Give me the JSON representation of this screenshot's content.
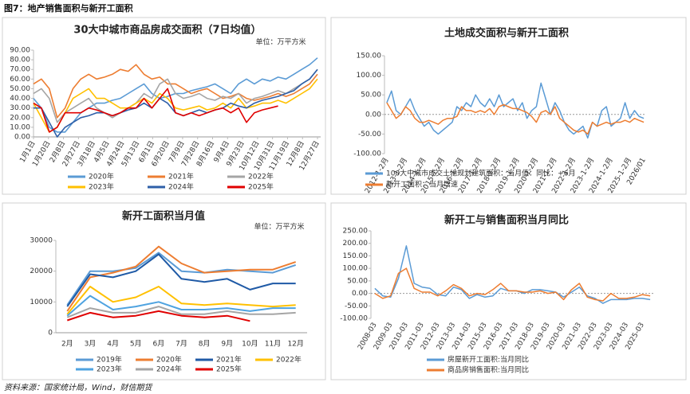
{
  "header": {
    "title": "图7：地产销售面积与新开工面积"
  },
  "footer": {
    "source": "资料来源：国家统计局，Wind，财信期货"
  },
  "chart_data": [
    {
      "type": "line",
      "title": "30大中城市商品房成交面积（7日均值）",
      "unit": "单位：万平方米",
      "x": [
        0,
        10,
        20,
        30,
        40,
        50,
        60,
        70,
        80,
        90,
        100,
        110,
        120,
        130,
        140,
        150,
        160,
        170,
        180,
        190,
        200,
        210,
        220,
        230,
        240,
        250,
        260,
        270,
        280,
        290,
        300,
        310,
        320,
        330,
        340,
        350,
        360
      ],
      "xlim": [
        0,
        364
      ],
      "xticks": [
        {
          "value": 0,
          "label": "1月1日"
        },
        {
          "value": 19,
          "label": "1月20日"
        },
        {
          "value": 38,
          "label": "2月8日"
        },
        {
          "value": 57,
          "label": "2月27日"
        },
        {
          "value": 76,
          "label": "3月18日"
        },
        {
          "value": 94,
          "label": "4月5日"
        },
        {
          "value": 113,
          "label": "4月24日"
        },
        {
          "value": 132,
          "label": "5月13日"
        },
        {
          "value": 151,
          "label": "6月1日"
        },
        {
          "value": 170,
          "label": "6月20日"
        },
        {
          "value": 189,
          "label": "7月9日"
        },
        {
          "value": 208,
          "label": "7月28日"
        },
        {
          "value": 227,
          "label": "8月16日"
        },
        {
          "value": 246,
          "label": "9月4日"
        },
        {
          "value": 265,
          "label": "9月23日"
        },
        {
          "value": 284,
          "label": "10月12日"
        },
        {
          "value": 303,
          "label": "10月31日"
        },
        {
          "value": 322,
          "label": "11月19日"
        },
        {
          "value": 341,
          "label": "12月8日"
        },
        {
          "value": 360,
          "label": "12月27日"
        }
      ],
      "ylim": [
        0,
        90
      ],
      "yticks": [
        {
          "value": 0,
          "label": "0.00"
        },
        {
          "value": 10,
          "label": "10.00"
        },
        {
          "value": 20,
          "label": "20.00"
        },
        {
          "value": 30,
          "label": "30.00"
        },
        {
          "value": 40,
          "label": "40.00"
        },
        {
          "value": 50,
          "label": "50.00"
        },
        {
          "value": 60,
          "label": "60.00"
        },
        {
          "value": 70,
          "label": "70.00"
        },
        {
          "value": 80,
          "label": "80.00"
        },
        {
          "value": 90,
          "label": "90.00"
        }
      ],
      "series": [
        {
          "name": "2020年",
          "color": "#5b9bd5",
          "values": [
            40,
            30,
            10,
            5,
            5,
            15,
            25,
            30,
            35,
            35,
            38,
            40,
            45,
            50,
            55,
            45,
            40,
            42,
            45,
            45,
            48,
            50,
            52,
            55,
            50,
            45,
            55,
            60,
            55,
            60,
            58,
            62,
            60,
            65,
            70,
            75,
            82
          ]
        },
        {
          "name": "2021年",
          "color": "#ed7d31",
          "values": [
            55,
            60,
            50,
            20,
            30,
            50,
            60,
            65,
            60,
            62,
            65,
            70,
            68,
            75,
            65,
            60,
            62,
            55,
            55,
            50,
            45,
            48,
            50,
            45,
            40,
            42,
            45,
            40,
            38,
            40,
            42,
            45,
            42,
            45,
            50,
            55,
            65
          ]
        },
        {
          "name": "2022年",
          "color": "#a5a5a5",
          "values": [
            45,
            50,
            40,
            15,
            25,
            30,
            35,
            40,
            30,
            25,
            20,
            25,
            30,
            35,
            45,
            40,
            55,
            60,
            45,
            40,
            42,
            45,
            40,
            38,
            42,
            40,
            45,
            35,
            40,
            42,
            45,
            48,
            45,
            50,
            55,
            60,
            70
          ]
        },
        {
          "name": "2023年",
          "color": "#ffc000",
          "values": [
            35,
            20,
            5,
            10,
            25,
            40,
            45,
            50,
            40,
            40,
            35,
            30,
            30,
            35,
            40,
            35,
            45,
            40,
            30,
            28,
            30,
            32,
            28,
            30,
            35,
            30,
            40,
            30,
            32,
            35,
            35,
            38,
            35,
            40,
            45,
            50,
            60
          ]
        },
        {
          "name": "2024年",
          "color": "#2e5fa8",
          "values": [
            30,
            30,
            15,
            0,
            10,
            15,
            20,
            22,
            25,
            25,
            22,
            25,
            28,
            30,
            35,
            30,
            40,
            35,
            25,
            22,
            25,
            28,
            25,
            28,
            30,
            35,
            32,
            30,
            35,
            38,
            40,
            42,
            45,
            48,
            55,
            60,
            70
          ]
        },
        {
          "name": "2025年",
          "color": "#e00000",
          "values": [
            35,
            30,
            5,
            10,
            25,
            25,
            25,
            30,
            28,
            25,
            22,
            25,
            30,
            30,
            40,
            30,
            40,
            50,
            25,
            22,
            25,
            22,
            25,
            28,
            30,
            25,
            30,
            15,
            25,
            28,
            30,
            32,
            null,
            null,
            null,
            null,
            null
          ]
        }
      ]
    },
    {
      "type": "line",
      "title": "土地成交面积与新开工面积",
      "categories": [
        "2012-1-2月",
        null,
        null,
        null,
        "2013-1-2月",
        null,
        null,
        null,
        "2014-1-2月",
        null,
        null,
        null,
        "2015-1-2月",
        null,
        null,
        null,
        "2016-1-2月",
        null,
        null,
        null,
        "2017-1-2月",
        null,
        null,
        null,
        "2018-1-2月",
        null,
        null,
        null,
        "2019-1-2月",
        null,
        null,
        null,
        "2020-1-2月",
        null,
        null,
        null,
        "2021-1-2月",
        null,
        null,
        null,
        "2022-1-2月",
        null,
        null,
        null,
        "2023-1-2月",
        null,
        null,
        null,
        "2024-1-2月",
        null,
        null,
        null,
        "2025-1-2月",
        null,
        null,
        "2026/01"
      ],
      "ylim": [
        -100,
        150
      ],
      "yticks": [
        {
          "value": -100,
          "label": "-100.00"
        },
        {
          "value": -50,
          "label": "-50.00"
        },
        {
          "value": 0,
          "label": "0.00"
        },
        {
          "value": 50,
          "label": "50.00"
        },
        {
          "value": 100,
          "label": "100.00"
        },
        {
          "value": 150,
          "label": "150.00"
        }
      ],
      "series": [
        {
          "name": "100大中城市成交土地规划建筑面积：当月值：同比：+6月",
          "color": "#5b9bd5",
          "values": [
            30,
            60,
            10,
            0,
            20,
            40,
            10,
            -10,
            -30,
            -20,
            -40,
            -50,
            -40,
            -30,
            -20,
            20,
            10,
            30,
            20,
            50,
            30,
            20,
            40,
            20,
            50,
            20,
            30,
            40,
            10,
            30,
            -10,
            10,
            20,
            80,
            40,
            0,
            30,
            10,
            -20,
            -40,
            -50,
            -40,
            -30,
            -60,
            -20,
            -30,
            10,
            20,
            -30,
            -20,
            -10,
            30,
            -10,
            10,
            -5,
            -10
          ]
        },
        {
          "name": "新开工面积：当月增速",
          "color": "#ed7d31",
          "values": [
            30,
            10,
            -10,
            0,
            20,
            10,
            -10,
            -20,
            -20,
            -15,
            -20,
            -25,
            -15,
            -10,
            -10,
            -5,
            20,
            10,
            10,
            5,
            10,
            5,
            15,
            0,
            20,
            25,
            20,
            15,
            15,
            10,
            5,
            -5,
            -20,
            5,
            10,
            0,
            20,
            -10,
            -20,
            -30,
            -40,
            -45,
            -40,
            -50,
            -20,
            -30,
            -25,
            -20,
            -25,
            -20,
            -20,
            -15,
            -20,
            -10,
            -15,
            -20
          ]
        }
      ]
    },
    {
      "type": "line",
      "title": "新开工面积当月值",
      "unit": "单位：万平方米",
      "categories": [
        "2月",
        "3月",
        "4月",
        "5月",
        "6月",
        "7月",
        "8月",
        "9月",
        "10月",
        "11月",
        "12月"
      ],
      "ylim": [
        0,
        30000
      ],
      "yticks": [
        0,
        10000,
        20000,
        30000
      ],
      "series": [
        {
          "name": "2019年",
          "color": "#5b9bd5",
          "values": [
            9000,
            20000,
            20000,
            21000,
            26000,
            20000,
            19500,
            20500,
            20000,
            19500,
            22000
          ]
        },
        {
          "name": "2020年",
          "color": "#ed7d31",
          "values": [
            7000,
            18000,
            19500,
            21500,
            28000,
            22500,
            19500,
            20000,
            20500,
            20500,
            23000
          ]
        },
        {
          "name": "2021年",
          "color": "#1f5aa6",
          "values": [
            8500,
            19000,
            18000,
            20000,
            25500,
            17500,
            16500,
            17500,
            14000,
            16000,
            16000
          ]
        },
        {
          "name": "2022年",
          "color": "#ffc000",
          "values": [
            6000,
            15000,
            10000,
            11500,
            15000,
            9500,
            9000,
            9500,
            9000,
            8500,
            9000
          ]
        },
        {
          "name": "2023年",
          "color": "#4fa3e0",
          "values": [
            5500,
            12000,
            7500,
            8500,
            10000,
            7500,
            7500,
            8000,
            7000,
            8000,
            8000
          ]
        },
        {
          "name": "2024年",
          "color": "#a5a5a5",
          "values": [
            5000,
            8000,
            6500,
            6500,
            8500,
            6000,
            6000,
            7000,
            6000,
            6000,
            6500
          ]
        },
        {
          "name": "2025年",
          "color": "#e00000",
          "values": [
            4000,
            6500,
            5000,
            5500,
            7000,
            5500,
            5000,
            5500,
            3800,
            null,
            null
          ]
        }
      ]
    },
    {
      "type": "line",
      "title": "新开工与销售面积当月同比",
      "categories": [
        "2008-03",
        null,
        "2009-03",
        null,
        "2010-03",
        null,
        "2011-03",
        null,
        "2012-03",
        null,
        "2013-03",
        null,
        "2014-03",
        null,
        "2015-03",
        null,
        "2016-03",
        null,
        "2017-03",
        null,
        "2018-03",
        null,
        "2019-03",
        null,
        "2020-03",
        null,
        "2021-03",
        null,
        "2022-03",
        null,
        "2023-03",
        null,
        "2024-03",
        null,
        "2025-03",
        null
      ],
      "ylim": [
        -100,
        250
      ],
      "yticks": [
        {
          "value": -100,
          "label": "-100.00"
        },
        {
          "value": -50,
          "label": "-50.00"
        },
        {
          "value": 0,
          "label": "0.00"
        },
        {
          "value": 50,
          "label": "50.00"
        },
        {
          "value": 100,
          "label": "100.00"
        },
        {
          "value": 150,
          "label": "150.00"
        },
        {
          "value": 200,
          "label": "200.00"
        },
        {
          "value": 250,
          "label": "250.00"
        }
      ],
      "series": [
        {
          "name": "房屋新开工面积:当月同比",
          "color": "#5b9bd5",
          "values": [
            20,
            -10,
            -15,
            60,
            190,
            40,
            25,
            20,
            -5,
            -10,
            25,
            15,
            -20,
            -5,
            -15,
            -10,
            20,
            10,
            10,
            0,
            15,
            15,
            10,
            5,
            -15,
            5,
            25,
            -10,
            -20,
            -40,
            -25,
            -25,
            -25,
            -20,
            -20,
            -25
          ]
        },
        {
          "name": "商品房销售面积:当月同比",
          "color": "#ed7d31",
          "values": [
            0,
            -20,
            -10,
            80,
            100,
            20,
            5,
            5,
            -10,
            10,
            35,
            20,
            -10,
            0,
            -5,
            15,
            40,
            10,
            10,
            5,
            5,
            10,
            0,
            5,
            -25,
            15,
            40,
            -15,
            -25,
            -30,
            0,
            -20,
            -20,
            -15,
            -5,
            -10
          ]
        }
      ]
    }
  ]
}
